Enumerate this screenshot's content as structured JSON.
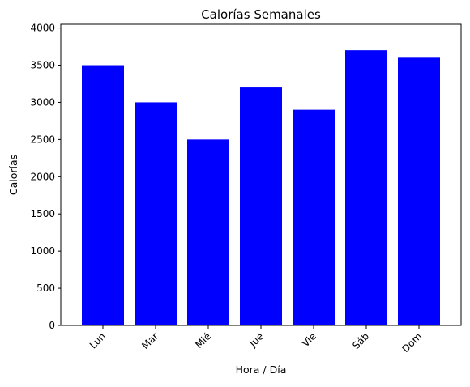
{
  "chart_data": {
    "type": "bar",
    "title": "Calorías Semanales",
    "xlabel": "Hora / Día",
    "ylabel": "Calorías",
    "categories": [
      "Lun",
      "Mar",
      "Mié",
      "Jue",
      "Vie",
      "Sáb",
      "Dom"
    ],
    "values": [
      3500,
      3000,
      2500,
      3200,
      2900,
      3700,
      3600
    ],
    "ylim": [
      0,
      4050
    ],
    "yticks": [
      0,
      500,
      1000,
      1500,
      2000,
      2500,
      3000,
      3500,
      4000
    ],
    "grid": false,
    "bar_color": "#0000ff"
  }
}
